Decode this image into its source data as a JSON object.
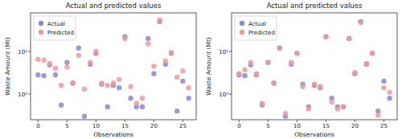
{
  "chart_data": [
    {
      "type": "scatter",
      "title": "Actual and predicted values",
      "x_label": "Observations",
      "y_label": "Waste Amount (Mt)",
      "x": [
        0,
        1,
        2,
        3,
        4,
        5,
        6,
        7,
        8,
        9,
        10,
        11,
        12,
        13,
        14,
        15,
        16,
        17,
        18,
        19,
        20,
        21,
        22,
        23,
        24,
        25,
        26
      ],
      "series": [
        {
          "name": "Actual",
          "color": "#8a8ad6",
          "marker": "circle",
          "values": [
            2.8,
            2.7,
            4.8,
            2.8,
            0.55,
            5.5,
            1.8,
            12,
            0.3,
            5,
            9,
            1.7,
            0.5,
            1.6,
            1.4,
            22,
            0.8,
            0.5,
            0.5,
            20,
            3,
            50,
            5,
            9,
            0.4,
            2,
            0.8
          ]
        },
        {
          "name": "Predicted",
          "color": "#f09a9a",
          "marker": "circle",
          "values": [
            6.5,
            6.2,
            5.2,
            4,
            1.6,
            4.3,
            1.8,
            8,
            1.3,
            5.5,
            10,
            1.8,
            1.6,
            1.8,
            2.2,
            20,
            1.5,
            0.6,
            0.8,
            15,
            4.5,
            55,
            6,
            9.5,
            2.5,
            3.5,
            1.4
          ]
        }
      ],
      "xlim": [
        -1.3,
        27.3
      ],
      "xticks": [
        0,
        5,
        10,
        15,
        20,
        25
      ],
      "ylim": [
        0.25,
        80
      ],
      "yticks": [
        {
          "value": 1,
          "label": "10⁰"
        },
        {
          "value": 10,
          "label": "10¹"
        }
      ],
      "log": "y",
      "legend": "upper-left"
    },
    {
      "type": "scatter",
      "title": "Actual and predicted values",
      "x_label": "Observations",
      "y_label": "Waste Amount (Mt)",
      "x": [
        0,
        1,
        2,
        3,
        4,
        5,
        6,
        7,
        8,
        9,
        10,
        11,
        12,
        13,
        14,
        15,
        16,
        17,
        18,
        19,
        20,
        21,
        22,
        23,
        24,
        25,
        26
      ],
      "series": [
        {
          "name": "Actual",
          "color": "#8a8ad6",
          "marker": "circle",
          "values": [
            2.8,
            2.7,
            4.8,
            2.8,
            0.55,
            5.5,
            1.8,
            12,
            0.3,
            5,
            9,
            1.7,
            0.5,
            1.6,
            1.4,
            22,
            0.8,
            0.5,
            0.5,
            20,
            3,
            50,
            5,
            9,
            0.4,
            2,
            0.8
          ]
        },
        {
          "name": "Predicted",
          "color": "#f09a9a",
          "marker": "circle",
          "values": [
            3,
            3.7,
            5.5,
            3,
            0.6,
            5.5,
            1.8,
            12,
            0.35,
            5.5,
            9,
            1.5,
            0.45,
            1.7,
            1.5,
            22,
            0.65,
            0.45,
            0.5,
            20,
            3.2,
            48,
            5.2,
            9.2,
            0.32,
            1.4,
            1.1
          ]
        }
      ],
      "xlim": [
        -1.3,
        27.3
      ],
      "xticks": [
        0,
        5,
        10,
        15,
        20,
        25
      ],
      "ylim": [
        0.25,
        80
      ],
      "yticks": [
        {
          "value": 1,
          "label": "10⁰"
        },
        {
          "value": 10,
          "label": "10¹"
        }
      ],
      "log": "y",
      "legend": "upper-left"
    }
  ]
}
